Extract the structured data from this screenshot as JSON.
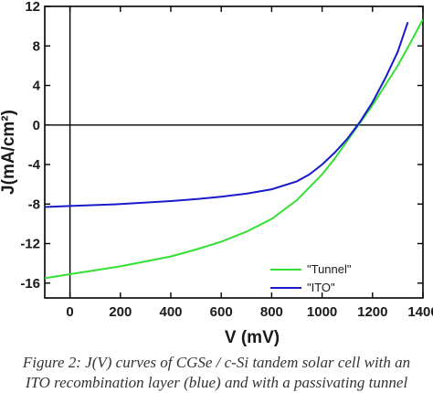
{
  "chart_data": {
    "type": "line",
    "xlabel": "V (mV)",
    "ylabel": "J(mA/cm²)",
    "xlim": [
      -100,
      1400
    ],
    "ylim": [
      -17.5,
      12
    ],
    "xticks": [
      0,
      200,
      400,
      600,
      800,
      1000,
      1200,
      1400
    ],
    "yticks": [
      12,
      8,
      4,
      0,
      -4,
      -8,
      -12,
      -16
    ],
    "grid": false,
    "legend_position": "bottom-right",
    "series": [
      {
        "name": "\"Tunnel\"",
        "color": "#33e033",
        "x": [
          -100,
          0,
          100,
          200,
          300,
          400,
          500,
          600,
          700,
          800,
          900,
          1000,
          1050,
          1100,
          1150,
          1200,
          1250,
          1300,
          1350,
          1400
        ],
        "y": [
          -15.5,
          -15.1,
          -14.7,
          -14.3,
          -13.8,
          -13.3,
          -12.6,
          -11.8,
          -10.8,
          -9.5,
          -7.6,
          -5.0,
          -3.4,
          -1.6,
          0.2,
          2.0,
          4.0,
          6.0,
          8.3,
          10.7
        ]
      },
      {
        "name": "\"ITO\"",
        "color": "#1a1acc",
        "x": [
          -100,
          0,
          100,
          200,
          300,
          400,
          500,
          600,
          700,
          800,
          900,
          950,
          1000,
          1050,
          1100,
          1150,
          1200,
          1250,
          1300,
          1340
        ],
        "y": [
          -8.3,
          -8.2,
          -8.1,
          -8.0,
          -7.85,
          -7.7,
          -7.5,
          -7.25,
          -6.95,
          -6.5,
          -5.7,
          -5.0,
          -4.0,
          -2.8,
          -1.4,
          0.3,
          2.3,
          4.7,
          7.4,
          10.4
        ]
      }
    ]
  },
  "caption": "Figure 2: J(V) curves of CGSe / c-Si tandem solar cell with an\nITO recombination layer (blue) and with a passivating tunnel"
}
